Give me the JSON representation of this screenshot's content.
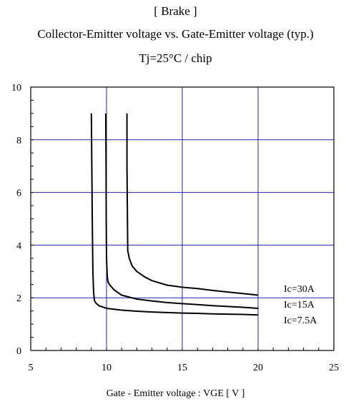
{
  "chart_data": {
    "type": "line",
    "title": "[ Brake ]",
    "subtitle": "Collector-Emitter voltage  vs. Gate-Emitter voltage (typ.)",
    "condition": "Tj=25°C / chip",
    "xlabel": "Gate - Emitter voltage  :  VGE  [ V ]",
    "ylabel": "",
    "xlim": [
      5,
      25
    ],
    "ylim": [
      0,
      10
    ],
    "xticks": [
      5,
      10,
      15,
      20,
      25
    ],
    "yticks": [
      0,
      2,
      4,
      6,
      8,
      10
    ],
    "grid": true,
    "series": [
      {
        "name": "Ic=30A",
        "x": [
          11.35,
          11.35,
          11.38,
          11.4,
          11.5,
          11.7,
          12.0,
          12.5,
          13.0,
          14.0,
          15.0,
          16.0,
          17.0,
          18.0,
          19.0,
          20.0
        ],
        "y": [
          9.0,
          7.0,
          5.0,
          3.8,
          3.5,
          3.2,
          3.0,
          2.8,
          2.65,
          2.48,
          2.4,
          2.35,
          2.28,
          2.22,
          2.16,
          2.1
        ]
      },
      {
        "name": "Ic=15A",
        "x": [
          9.95,
          9.97,
          9.98,
          10.0,
          10.05,
          10.1,
          10.2,
          10.5,
          11.0,
          12.0,
          13.0,
          14.0,
          15.0,
          16.0,
          17.0,
          18.0,
          19.0,
          20.0
        ],
        "y": [
          9.0,
          7.0,
          5.0,
          3.5,
          2.8,
          2.6,
          2.5,
          2.3,
          2.1,
          1.95,
          1.88,
          1.82,
          1.78,
          1.74,
          1.7,
          1.67,
          1.64,
          1.6
        ]
      },
      {
        "name": "Ic=7.5A",
        "x": [
          9.0,
          9.03,
          9.06,
          9.1,
          9.15,
          9.2,
          9.3,
          9.5,
          10.0,
          11.0,
          12.0,
          13.0,
          14.0,
          15.0,
          16.0,
          17.0,
          18.0,
          19.0,
          20.0
        ],
        "y": [
          9.0,
          7.0,
          5.0,
          3.0,
          2.2,
          1.9,
          1.8,
          1.7,
          1.6,
          1.53,
          1.49,
          1.46,
          1.44,
          1.42,
          1.41,
          1.39,
          1.38,
          1.37,
          1.35
        ]
      }
    ]
  }
}
